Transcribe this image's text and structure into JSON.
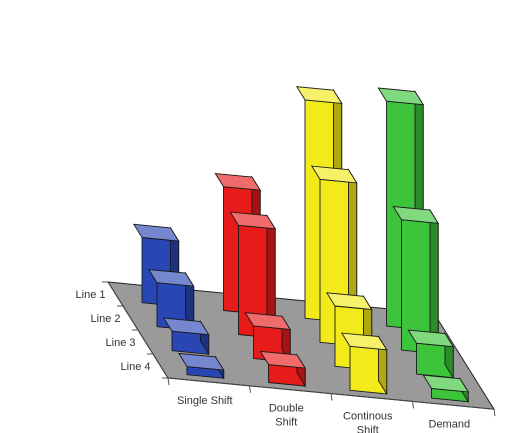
{
  "chart_data": {
    "type": "bar",
    "style": "3d",
    "x_categories": [
      "Single Shift",
      "Double Shift",
      "Continous Shift",
      "Demand"
    ],
    "x_category_lines": [
      [
        "Single Shift"
      ],
      [
        "Double",
        "Shift"
      ],
      [
        "Continous",
        "Shift"
      ],
      [
        "Demand"
      ]
    ],
    "y_categories": [
      "Line 1",
      "Line 2",
      "Line 3",
      "Line 4"
    ],
    "series": [
      {
        "x_category": "Single Shift",
        "color": "#2946b5",
        "values": [
          4.0,
          2.7,
          1.2,
          0.5
        ]
      },
      {
        "x_category": "Double Shift",
        "color": "#e81b1b",
        "values": [
          7.6,
          6.7,
          2.0,
          1.1
        ]
      },
      {
        "x_category": "Continous Shift",
        "color": "#f2ea1a",
        "values": [
          13.4,
          10.0,
          3.7,
          2.7
        ]
      },
      {
        "x_category": "Demand",
        "color": "#3cc43a",
        "values": [
          13.8,
          8.0,
          1.9,
          0.6
        ]
      }
    ],
    "floor_color": "#9a9a9a",
    "grid": false
  }
}
